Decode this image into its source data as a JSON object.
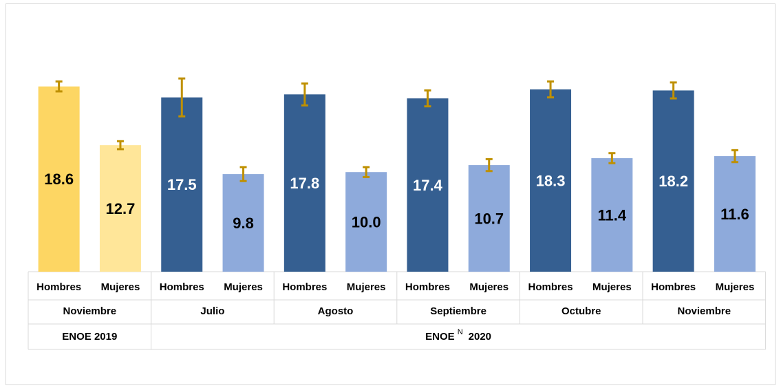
{
  "chart_data": {
    "type": "bar",
    "categories": [
      "Hombres",
      "Mujeres",
      "Hombres",
      "Mujeres",
      "Hombres",
      "Mujeres",
      "Hombres",
      "Mujeres",
      "Hombres",
      "Mujeres",
      "Hombres",
      "Mujeres"
    ],
    "values": [
      18.6,
      12.7,
      17.5,
      9.8,
      17.8,
      10.0,
      17.4,
      10.7,
      18.3,
      11.4,
      18.2,
      11.6
    ],
    "value_labels": [
      "18.6",
      "12.7",
      "17.5",
      "9.8",
      "17.8",
      "10.0",
      "17.4",
      "10.7",
      "18.3",
      "11.4",
      "18.2",
      "11.6"
    ],
    "errors": [
      0.5,
      0.4,
      1.9,
      0.7,
      1.1,
      0.5,
      0.8,
      0.6,
      0.8,
      0.5,
      0.8,
      0.6
    ],
    "colors": [
      "#fdd663",
      "#ffe699",
      "#355f91",
      "#8eaadb",
      "#355f91",
      "#8eaadb",
      "#355f91",
      "#8eaadb",
      "#355f91",
      "#8eaadb",
      "#355f91",
      "#8eaadb"
    ],
    "label_colors": [
      "#000000",
      "#000000",
      "#ffffff",
      "#000000",
      "#ffffff",
      "#000000",
      "#ffffff",
      "#000000",
      "#ffffff",
      "#000000",
      "#ffffff",
      "#000000"
    ],
    "error_color": "#bf9000",
    "months": [
      {
        "name": "Noviembre",
        "span": 2
      },
      {
        "name": "Julio",
        "span": 2
      },
      {
        "name": "Agosto",
        "span": 2
      },
      {
        "name": "Septiembre",
        "span": 2
      },
      {
        "name": "Octubre",
        "span": 2
      },
      {
        "name": "Noviembre",
        "span": 2
      }
    ],
    "surveys": [
      {
        "label": "ENOE 2019",
        "span": 2
      },
      {
        "label": "ENOE",
        "superscript": "N",
        "label_end": "2020",
        "span": 10
      }
    ],
    "ylim": [
      0,
      25
    ]
  }
}
